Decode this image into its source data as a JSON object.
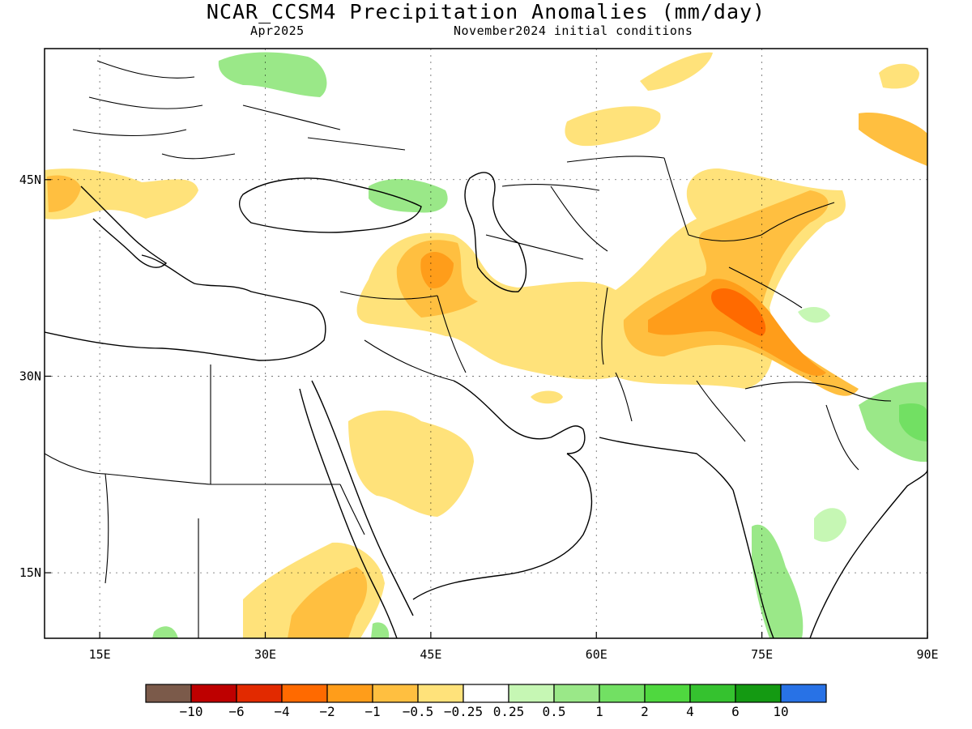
{
  "header": {
    "title": "NCAR_CCSM4 Precipitation Anomalies (mm/day)",
    "valid_month": "Apr2025",
    "init": "November2024 initial conditions"
  },
  "map": {
    "lon_range": [
      10,
      90
    ],
    "lat_range": [
      10,
      55
    ],
    "x_ticks": [
      {
        "value": 15,
        "label": "15E"
      },
      {
        "value": 30,
        "label": "30E"
      },
      {
        "value": 45,
        "label": "45E"
      },
      {
        "value": 60,
        "label": "60E"
      },
      {
        "value": 75,
        "label": "75E"
      },
      {
        "value": 90,
        "label": "90E"
      }
    ],
    "y_ticks": [
      {
        "value": 45,
        "label": "45N"
      },
      {
        "value": 30,
        "label": "30N"
      },
      {
        "value": 15,
        "label": "15N"
      }
    ],
    "gridlines": "dotted"
  },
  "colorbar": {
    "colors": [
      "#7b5a4a",
      "#be0000",
      "#e22a00",
      "#ff6a00",
      "#ff9d1a",
      "#ffbf40",
      "#ffe27a",
      "#ffffff",
      "#c6f7b4",
      "#9ae888",
      "#72e063",
      "#4fd83f",
      "#35c22f",
      "#149a12",
      "#2872e6"
    ],
    "labels": [
      "−10",
      "−6",
      "−4",
      "−2",
      "−1",
      "−0.5",
      "−0.25",
      "0.25",
      "0.5",
      "1",
      "2",
      "4",
      "6",
      "10"
    ]
  }
}
